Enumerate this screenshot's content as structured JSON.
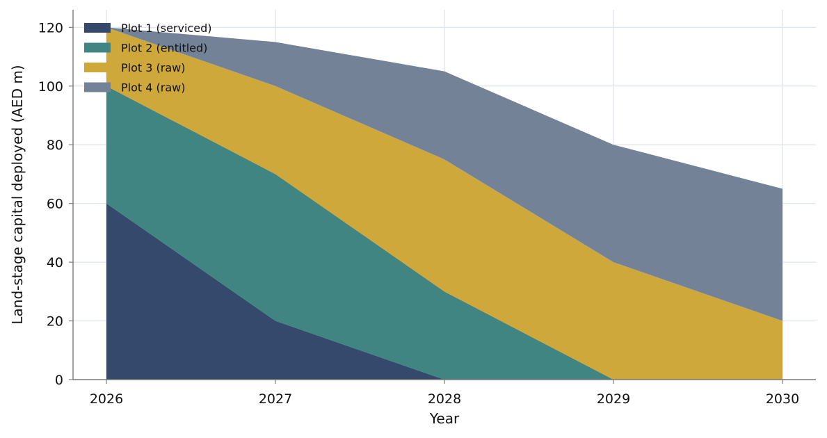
{
  "chart_data": {
    "type": "area",
    "stacked": true,
    "x": [
      2026,
      2027,
      2028,
      2029,
      2030
    ],
    "xlabel": "Year",
    "ylabel": "Land-stage capital deployed (AED m)",
    "xticks": [
      "2026",
      "2027",
      "2028",
      "2029",
      "2030"
    ],
    "yticks": [
      "0",
      "20",
      "40",
      "60",
      "80",
      "100",
      "120"
    ],
    "ylim": [
      0,
      126
    ],
    "grid": true,
    "legend_position": "top-left",
    "series": [
      {
        "name": "Plot 1 (serviced)",
        "values": [
          60,
          20,
          0,
          0,
          0
        ],
        "color": "#34496b"
      },
      {
        "name": "Plot 2 (entitled)",
        "values": [
          40,
          50,
          30,
          0,
          0
        ],
        "color": "#418583"
      },
      {
        "name": "Plot 3 (raw)",
        "values": [
          20,
          30,
          45,
          40,
          20
        ],
        "color": "#cfa83c"
      },
      {
        "name": "Plot 4 (raw)",
        "values": [
          0,
          15,
          30,
          40,
          45
        ],
        "color": "#738297"
      }
    ]
  }
}
